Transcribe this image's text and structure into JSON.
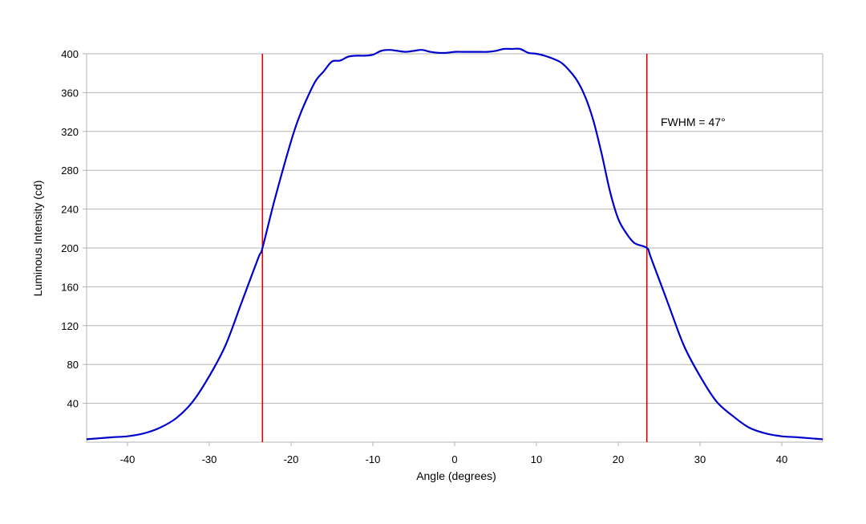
{
  "chart_data": {
    "type": "line",
    "title": "",
    "xlabel": "Angle (degrees)",
    "ylabel": "Luminous Intensity (cd)",
    "xlim": [
      -45,
      45
    ],
    "ylim": [
      0,
      400
    ],
    "xticks": [
      -40,
      -30,
      -20,
      -10,
      0,
      10,
      20,
      30,
      40
    ],
    "yticks": [
      40,
      80,
      120,
      160,
      200,
      240,
      280,
      320,
      360,
      400
    ],
    "grid": "horizontal",
    "legend": "none",
    "series": [
      {
        "color": "#0000cc",
        "x": [
          -45,
          -42,
          -40,
          -38,
          -36,
          -34,
          -32,
          -30,
          -28,
          -26,
          -24,
          -23.5,
          -22,
          -20,
          -19,
          -18,
          -17,
          -16,
          -15,
          -14,
          -13,
          -12,
          -11,
          -10,
          -9,
          -8,
          -7,
          -6,
          -5,
          -4,
          -3,
          -2,
          -1,
          0,
          1,
          2,
          3,
          4,
          5,
          6,
          7,
          8,
          9,
          10,
          11,
          12,
          13,
          14,
          15,
          16,
          17,
          18,
          19,
          20,
          21,
          22,
          23.5,
          24,
          26,
          28,
          30,
          32,
          34,
          36,
          38,
          40,
          42,
          45
        ],
        "y": [
          3,
          5,
          6,
          9,
          15,
          25,
          42,
          68,
          100,
          145,
          190,
          200,
          250,
          310,
          335,
          355,
          372,
          382,
          392,
          393,
          397,
          398,
          398,
          399,
          403,
          404,
          403,
          402,
          403,
          404,
          402,
          401,
          401,
          402,
          402,
          402,
          402,
          402,
          403,
          405,
          405,
          405,
          401,
          400,
          398,
          395,
          391,
          383,
          372,
          355,
          330,
          296,
          258,
          230,
          215,
          205,
          200,
          190,
          145,
          100,
          68,
          42,
          27,
          15,
          9,
          6,
          5,
          3
        ]
      }
    ],
    "vlines": [
      {
        "x": -23.5,
        "color": "#dd0000"
      },
      {
        "x": 23.5,
        "color": "#dd0000"
      }
    ],
    "annotations": [
      {
        "text": "FWHM = 47°",
        "x": 25,
        "y": 340
      }
    ]
  }
}
